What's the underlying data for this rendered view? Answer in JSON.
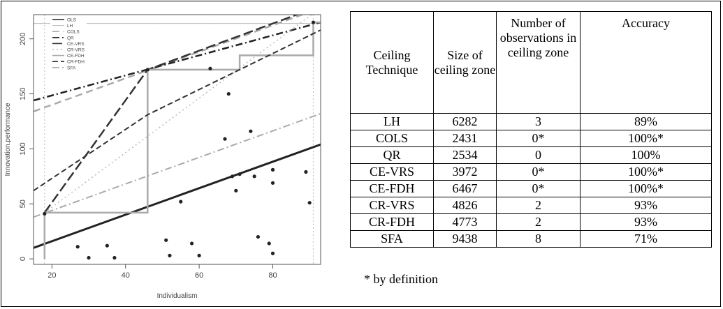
{
  "chart_data": {
    "type": "scatter",
    "xlabel": "Individualism",
    "ylabel": "Innovation.performance",
    "xlim": [
      15,
      93
    ],
    "ylim": [
      -5,
      222
    ],
    "xticks": [
      "20",
      "40",
      "60",
      "80"
    ],
    "xtick_values": [
      20,
      40,
      60,
      80
    ],
    "yticks": [
      "0",
      "50",
      "100",
      "150",
      "200"
    ],
    "ytick_values": [
      0,
      50,
      100,
      150,
      200
    ],
    "legend_position": "top-left",
    "legend": [
      "OLS",
      "LH",
      "COLS",
      "QR",
      "CE-VRS",
      "CR-VRS",
      "CE-FDH",
      "CR-FDH",
      "SFA"
    ],
    "points": [
      {
        "x": 18,
        "y": 41
      },
      {
        "x": 27,
        "y": 11
      },
      {
        "x": 30,
        "y": 1
      },
      {
        "x": 35,
        "y": 12
      },
      {
        "x": 37,
        "y": 1
      },
      {
        "x": 46,
        "y": 172
      },
      {
        "x": 51,
        "y": 17
      },
      {
        "x": 52,
        "y": 3
      },
      {
        "x": 55,
        "y": 52
      },
      {
        "x": 58,
        "y": 14
      },
      {
        "x": 60,
        "y": 3
      },
      {
        "x": 63,
        "y": 173
      },
      {
        "x": 67,
        "y": 109
      },
      {
        "x": 68,
        "y": 150
      },
      {
        "x": 69,
        "y": 75
      },
      {
        "x": 70,
        "y": 62
      },
      {
        "x": 71,
        "y": 77
      },
      {
        "x": 74,
        "y": 116
      },
      {
        "x": 75,
        "y": 75
      },
      {
        "x": 76,
        "y": 20
      },
      {
        "x": 79,
        "y": 14
      },
      {
        "x": 80,
        "y": 81
      },
      {
        "x": 80,
        "y": 69
      },
      {
        "x": 80,
        "y": 5
      },
      {
        "x": 89,
        "y": 79
      },
      {
        "x": 90,
        "y": 51
      },
      {
        "x": 91,
        "y": 215
      }
    ],
    "lines": [
      {
        "name": "OLS",
        "color": "#222222",
        "dash": "",
        "width": 3,
        "points": [
          [
            15,
            10
          ],
          [
            93,
            104
          ]
        ]
      },
      {
        "name": "LH",
        "color": "#bbbbbb",
        "dash": "",
        "width": 1,
        "points": [
          [
            15,
            214
          ],
          [
            93,
            214
          ]
        ]
      },
      {
        "name": "COLS",
        "color": "#aaaaaa",
        "dash": "10 6",
        "width": 2.5,
        "points": [
          [
            15,
            134
          ],
          [
            93,
            228
          ]
        ]
      },
      {
        "name": "QR",
        "color": "#222222",
        "dash": "10 4 2 4",
        "width": 2.5,
        "points": [
          [
            15,
            144
          ],
          [
            93,
            215
          ]
        ]
      },
      {
        "name": "CE-VRS",
        "color": "#333333",
        "dash": "14 5",
        "width": 2.5,
        "points": [
          [
            18,
            42
          ],
          [
            46,
            172
          ],
          [
            93,
            230
          ]
        ]
      },
      {
        "name": "CR-VRS",
        "color": "#bbbbbb",
        "dash": "2 4",
        "width": 1.5,
        "points": [
          [
            18,
            42
          ],
          [
            93,
            228
          ]
        ]
      },
      {
        "name": "CE-FDH",
        "color": "#aaaaaa",
        "dash": "",
        "width": 2.5,
        "points": [
          [
            18,
            0
          ],
          [
            18,
            42
          ],
          [
            46,
            42
          ],
          [
            46,
            172
          ],
          [
            71,
            172
          ],
          [
            71,
            185
          ],
          [
            91,
            185
          ],
          [
            91,
            215
          ],
          [
            93,
            215
          ]
        ]
      },
      {
        "name": "CR-FDH",
        "color": "#333333",
        "dash": "8 4",
        "width": 2,
        "points": [
          [
            15,
            62
          ],
          [
            46,
            131
          ],
          [
            93,
            208
          ]
        ]
      },
      {
        "name": "SFA",
        "color": "#aaaaaa",
        "dash": "10 4 2 4",
        "width": 2,
        "points": [
          [
            15,
            38
          ],
          [
            93,
            132
          ]
        ]
      }
    ],
    "reference_lines": [
      {
        "axis": "x",
        "value": 18,
        "color": "#bbbbbb",
        "dash": "2 3"
      },
      {
        "axis": "x",
        "value": 91,
        "color": "#bbbbbb",
        "dash": "2 3"
      }
    ]
  },
  "table": {
    "headers": [
      "Ceiling Technique",
      "Size of ceiling zone",
      "Number of observations in ceiling zone",
      "Accuracy"
    ],
    "rows": [
      [
        "LH",
        "6282",
        "3",
        "89%"
      ],
      [
        "COLS",
        "2431",
        "0*",
        "100%*"
      ],
      [
        "QR",
        "2534",
        "0",
        "100%"
      ],
      [
        "CE-VRS",
        "3972",
        "0*",
        "100%*"
      ],
      [
        "CE-FDH",
        "6467",
        "0*",
        "100%*"
      ],
      [
        "CR-VRS",
        "4826",
        "2",
        "93%"
      ],
      [
        "CR-FDH",
        "4773",
        "2",
        "93%"
      ],
      [
        "SFA",
        "9438",
        "8",
        "71%"
      ]
    ]
  },
  "footnote": "* by definition"
}
